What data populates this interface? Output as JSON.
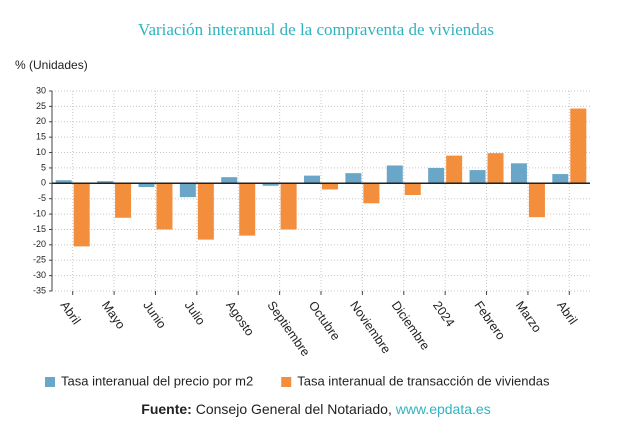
{
  "chart_data": {
    "type": "bar",
    "title": "Variación interanual de la compraventa de viviendas",
    "y_label": "% (Unidades)",
    "categories": [
      "Abril",
      "Mayo",
      "Junio",
      "Julio",
      "Agosto",
      "Septiembre",
      "Octubre",
      "Noviembre",
      "Diciembre",
      "2024",
      "Febrero",
      "Marzo",
      "Abril"
    ],
    "series": [
      {
        "name": "Tasa interanual del precio por m2",
        "color": "#6aa6c8",
        "values": [
          1,
          0.7,
          -1.2,
          -4.5,
          2,
          -0.8,
          2.5,
          3.3,
          5.8,
          5,
          4.3,
          6.5,
          3
        ]
      },
      {
        "name": "Tasa interanual de transacción de viviendas",
        "color": "#f28e3c",
        "values": [
          -20.5,
          -11.2,
          -15,
          -18.3,
          -17,
          -15,
          -2,
          -6.5,
          -3.8,
          9,
          9.8,
          -11,
          24.3
        ]
      }
    ],
    "ylim": [
      -35,
      30
    ],
    "yticks": [
      -35,
      -30,
      -25,
      -20,
      -15,
      -10,
      -5,
      0,
      5,
      10,
      15,
      20,
      25,
      30
    ],
    "grid": true,
    "legend": "bottom"
  },
  "source": {
    "label": "Fuente:",
    "text": "Consejo General del Notariado,",
    "link": "www.epdata.es"
  }
}
